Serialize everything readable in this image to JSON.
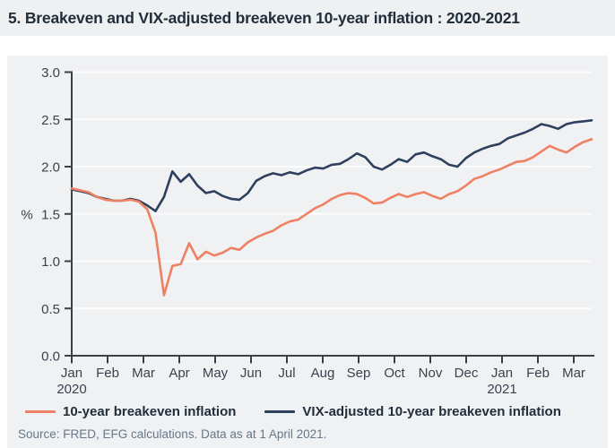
{
  "title": "5. Breakeven and VIX-adjusted breakeven 10-year inflation : 2020-2021",
  "source": "Source: FRED, EFG calculations. Data as at 1 April 2021.",
  "colors": {
    "breakeven_line": "#ee8164",
    "vix_adjusted_line": "#2e405e",
    "panel_bg": "#f0f1f2",
    "grid": "#fcfcfd",
    "axis": "#3a4049",
    "tick_text": "#39424f",
    "title_text": "#232e3b",
    "source_text": "#66788a"
  },
  "legend": [
    {
      "label": "10-year breakeven inflation"
    },
    {
      "label": "VIX-adjusted 10-year breakeven inflation"
    }
  ],
  "chart_data": {
    "type": "line",
    "title": "Breakeven and VIX-adjusted breakeven 10-year inflation, 2020-2021",
    "xlabel": "",
    "ylabel": "%",
    "ylim": [
      0.0,
      3.0
    ],
    "yticks": [
      0.0,
      0.5,
      1.0,
      1.5,
      2.0,
      2.5,
      3.0
    ],
    "grid": "horizontal-white",
    "legend_position": "bottom",
    "x_frequency": "weekly",
    "x_range": [
      "Jan 2020",
      "Mar 2021"
    ],
    "xtick_months": [
      "Jan",
      "Feb",
      "Mar",
      "Apr",
      "May",
      "Jun",
      "Jul",
      "Aug",
      "Sep",
      "Oct",
      "Nov",
      "Dec",
      "Jan",
      "Feb",
      "Mar"
    ],
    "xtick_year_labels": [
      {
        "month_index": 0,
        "label": "2020"
      },
      {
        "month_index": 12,
        "label": "2021"
      }
    ],
    "series": [
      {
        "name": "VIX-adjusted 10-year breakeven inflation",
        "color": "#2e405e",
        "values": [
          1.76,
          1.74,
          1.72,
          1.68,
          1.66,
          1.64,
          1.64,
          1.66,
          1.64,
          1.59,
          1.53,
          1.68,
          1.95,
          1.84,
          1.92,
          1.8,
          1.72,
          1.74,
          1.69,
          1.66,
          1.65,
          1.72,
          1.85,
          1.9,
          1.93,
          1.91,
          1.94,
          1.92,
          1.96,
          1.99,
          1.98,
          2.02,
          2.03,
          2.08,
          2.14,
          2.1,
          2.0,
          1.97,
          2.02,
          2.08,
          2.05,
          2.13,
          2.15,
          2.11,
          2.08,
          2.02,
          2.0,
          2.09,
          2.15,
          2.19,
          2.22,
          2.24,
          2.3,
          2.33,
          2.36,
          2.4,
          2.45,
          2.43,
          2.4,
          2.45,
          2.47,
          2.48,
          2.49
        ]
      },
      {
        "name": "10-year breakeven inflation",
        "color": "#ee8164",
        "values": [
          1.77,
          1.75,
          1.73,
          1.68,
          1.65,
          1.64,
          1.64,
          1.65,
          1.63,
          1.55,
          1.3,
          0.64,
          0.95,
          0.97,
          1.19,
          1.02,
          1.1,
          1.06,
          1.09,
          1.14,
          1.12,
          1.2,
          1.25,
          1.29,
          1.32,
          1.38,
          1.42,
          1.44,
          1.5,
          1.56,
          1.6,
          1.66,
          1.7,
          1.72,
          1.71,
          1.67,
          1.61,
          1.62,
          1.67,
          1.71,
          1.68,
          1.71,
          1.73,
          1.69,
          1.66,
          1.71,
          1.74,
          1.8,
          1.87,
          1.9,
          1.94,
          1.97,
          2.01,
          2.05,
          2.06,
          2.1,
          2.16,
          2.22,
          2.18,
          2.15,
          2.21,
          2.26,
          2.29
        ]
      }
    ]
  }
}
